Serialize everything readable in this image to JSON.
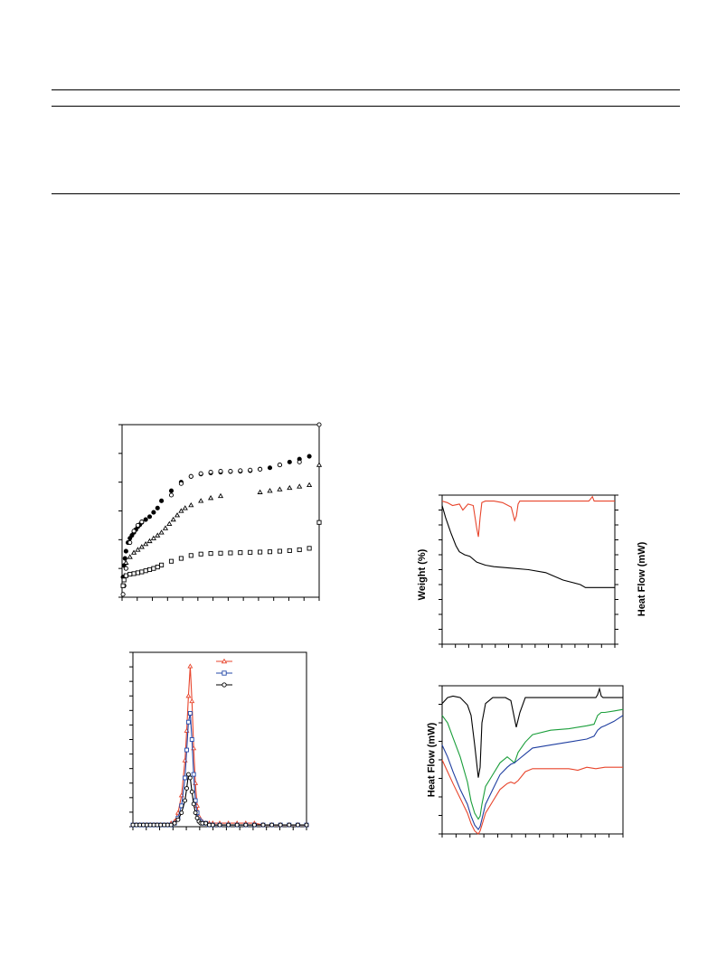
{
  "table": {
    "rules": 3
  },
  "figure_a": {
    "chart_data": {
      "type": "scatter",
      "title": "",
      "xlabel": "",
      "ylabel": "",
      "grid": false,
      "legend": "none",
      "xlim": [
        0,
        1
      ],
      "ylim": [
        0,
        600
      ],
      "series": [
        {
          "marker": "filled-circle",
          "color": "#000000",
          "x": [
            0.005,
            0.01,
            0.015,
            0.02,
            0.03,
            0.04,
            0.05,
            0.06,
            0.07,
            0.08,
            0.09,
            0.1,
            0.12,
            0.14,
            0.16,
            0.18,
            0.2,
            0.25,
            0.3,
            0.35,
            0.4,
            0.45,
            0.5,
            0.55,
            0.6,
            0.65,
            0.7,
            0.75,
            0.8,
            0.85,
            0.9,
            0.95
          ],
          "y": [
            70,
            110,
            135,
            160,
            190,
            205,
            215,
            225,
            235,
            245,
            252,
            260,
            270,
            280,
            295,
            310,
            335,
            370,
            400,
            420,
            428,
            432,
            435,
            437,
            438,
            440,
            445,
            450,
            460,
            470,
            480,
            490
          ]
        },
        {
          "marker": "open-circle",
          "color": "#000000",
          "x": [
            0.005,
            0.01,
            0.02,
            0.04,
            0.06,
            0.08,
            0.1,
            0.25,
            0.3,
            0.35,
            0.4,
            0.45,
            0.5,
            0.55,
            0.6,
            0.65,
            0.7,
            0.8,
            0.9,
            1.0
          ],
          "y": [
            10,
            40,
            100,
            190,
            230,
            250,
            262,
            355,
            395,
            420,
            430,
            435,
            438,
            438,
            440,
            442,
            445,
            460,
            470,
            600
          ]
        },
        {
          "marker": "open-triangle",
          "color": "#000000",
          "x": [
            0.02,
            0.04,
            0.06,
            0.08,
            0.1,
            0.12,
            0.14,
            0.16,
            0.18,
            0.2,
            0.22,
            0.24,
            0.26,
            0.28,
            0.3,
            0.32,
            0.35,
            0.4,
            0.45,
            0.5,
            0.7,
            0.75,
            0.8,
            0.85,
            0.9,
            0.95,
            1.0
          ],
          "y": [
            120,
            140,
            155,
            165,
            175,
            185,
            195,
            205,
            215,
            225,
            240,
            255,
            270,
            285,
            300,
            310,
            320,
            335,
            345,
            352,
            365,
            370,
            375,
            380,
            385,
            390,
            460
          ]
        },
        {
          "marker": "open-square",
          "color": "#000000",
          "x": [
            0.005,
            0.01,
            0.02,
            0.04,
            0.06,
            0.08,
            0.1,
            0.12,
            0.14,
            0.16,
            0.18,
            0.2,
            0.25,
            0.3,
            0.35,
            0.4,
            0.45,
            0.5,
            0.55,
            0.6,
            0.65,
            0.7,
            0.75,
            0.8,
            0.85,
            0.9,
            0.95,
            1.0
          ],
          "y": [
            40,
            60,
            75,
            80,
            82,
            85,
            88,
            92,
            96,
            100,
            105,
            112,
            125,
            135,
            145,
            150,
            152,
            153,
            154,
            155,
            156,
            157,
            158,
            160,
            162,
            165,
            170,
            260
          ]
        }
      ]
    }
  },
  "figure_b": {
    "chart_data": {
      "type": "line",
      "title": "",
      "xlabel": "",
      "ylabel": "",
      "grid": false,
      "legend": "top-right",
      "xlim": [
        0,
        1
      ],
      "ylim": [
        0,
        1
      ],
      "series": [
        {
          "marker": "open-triangle",
          "color": "#e8452c",
          "x": [
            0.0,
            0.02,
            0.04,
            0.06,
            0.08,
            0.1,
            0.12,
            0.14,
            0.16,
            0.18,
            0.2,
            0.22,
            0.24,
            0.26,
            0.28,
            0.3,
            0.31,
            0.32,
            0.33,
            0.34,
            0.35,
            0.36,
            0.37,
            0.38,
            0.39,
            0.4,
            0.42,
            0.44,
            0.46,
            0.5,
            0.55,
            0.6,
            0.65,
            0.7,
            0.75,
            0.8,
            0.85,
            0.9,
            0.95,
            1.0
          ],
          "y": [
            0.01,
            0.01,
            0.01,
            0.01,
            0.01,
            0.01,
            0.01,
            0.01,
            0.01,
            0.01,
            0.01,
            0.02,
            0.03,
            0.08,
            0.18,
            0.38,
            0.55,
            0.75,
            0.92,
            0.72,
            0.45,
            0.25,
            0.12,
            0.06,
            0.04,
            0.03,
            0.02,
            0.02,
            0.02,
            0.02,
            0.02,
            0.02,
            0.02,
            0.02,
            0.01,
            0.01,
            0.01,
            0.01,
            0.01,
            0.01
          ]
        },
        {
          "marker": "open-square",
          "color": "#2448a8",
          "x": [
            0.0,
            0.02,
            0.04,
            0.06,
            0.08,
            0.1,
            0.12,
            0.14,
            0.16,
            0.18,
            0.2,
            0.22,
            0.24,
            0.26,
            0.28,
            0.3,
            0.31,
            0.32,
            0.33,
            0.34,
            0.35,
            0.36,
            0.37,
            0.38,
            0.39,
            0.4,
            0.42,
            0.44,
            0.46,
            0.5,
            0.55,
            0.6,
            0.65,
            0.7,
            0.75,
            0.8,
            0.85,
            0.9,
            0.95,
            1.0
          ],
          "y": [
            0.01,
            0.01,
            0.01,
            0.01,
            0.01,
            0.01,
            0.01,
            0.01,
            0.01,
            0.01,
            0.01,
            0.01,
            0.02,
            0.05,
            0.12,
            0.28,
            0.44,
            0.6,
            0.65,
            0.5,
            0.3,
            0.15,
            0.08,
            0.04,
            0.03,
            0.02,
            0.02,
            0.01,
            0.01,
            0.01,
            0.01,
            0.01,
            0.01,
            0.01,
            0.01,
            0.01,
            0.01,
            0.01,
            0.01,
            0.01
          ]
        },
        {
          "marker": "open-circle",
          "color": "#000000",
          "x": [
            0.0,
            0.02,
            0.04,
            0.06,
            0.08,
            0.1,
            0.12,
            0.14,
            0.16,
            0.18,
            0.2,
            0.22,
            0.24,
            0.26,
            0.28,
            0.3,
            0.31,
            0.32,
            0.33,
            0.34,
            0.35,
            0.36,
            0.37,
            0.38,
            0.39,
            0.4,
            0.42,
            0.44,
            0.46,
            0.5,
            0.55,
            0.6,
            0.65,
            0.7,
            0.75,
            0.8,
            0.85,
            0.9,
            0.95,
            1.0
          ],
          "y": [
            0.01,
            0.01,
            0.01,
            0.01,
            0.01,
            0.01,
            0.01,
            0.01,
            0.01,
            0.01,
            0.01,
            0.01,
            0.02,
            0.04,
            0.08,
            0.15,
            0.22,
            0.3,
            0.28,
            0.2,
            0.13,
            0.08,
            0.05,
            0.03,
            0.02,
            0.02,
            0.02,
            0.01,
            0.01,
            0.01,
            0.01,
            0.01,
            0.01,
            0.01,
            0.01,
            0.01,
            0.01,
            0.01,
            0.01,
            0.01
          ]
        }
      ]
    }
  },
  "figure_c": {
    "y_label_left": "Weight (%)",
    "y_label_right": "Heat Flow (mW)",
    "chart_data": {
      "type": "line",
      "title": "",
      "xlabel": "",
      "grid": false,
      "legend": "none",
      "xlim": [
        0,
        1
      ],
      "ylim": [
        0,
        1
      ],
      "series": [
        {
          "color": "#e8452c",
          "x": [
            0.0,
            0.03,
            0.06,
            0.1,
            0.12,
            0.15,
            0.18,
            0.2,
            0.21,
            0.22,
            0.23,
            0.25,
            0.3,
            0.35,
            0.4,
            0.42,
            0.43,
            0.44,
            0.45,
            0.47,
            0.5,
            0.6,
            0.7,
            0.8,
            0.85,
            0.87,
            0.88,
            0.89,
            0.9,
            0.95,
            1.0
          ],
          "y": [
            0.96,
            0.95,
            0.93,
            0.94,
            0.9,
            0.94,
            0.93,
            0.78,
            0.72,
            0.85,
            0.95,
            0.96,
            0.96,
            0.95,
            0.92,
            0.83,
            0.86,
            0.94,
            0.96,
            0.96,
            0.96,
            0.96,
            0.96,
            0.96,
            0.96,
            0.99,
            0.96,
            0.96,
            0.96,
            0.96,
            0.96
          ]
        },
        {
          "color": "#000000",
          "x": [
            0.0,
            0.02,
            0.05,
            0.08,
            0.1,
            0.13,
            0.16,
            0.2,
            0.25,
            0.3,
            0.4,
            0.5,
            0.6,
            0.7,
            0.8,
            0.83,
            0.85,
            0.9,
            0.95,
            1.0
          ],
          "y": [
            0.93,
            0.85,
            0.75,
            0.66,
            0.62,
            0.6,
            0.59,
            0.55,
            0.53,
            0.52,
            0.51,
            0.5,
            0.48,
            0.43,
            0.4,
            0.38,
            0.38,
            0.38,
            0.38,
            0.38
          ]
        }
      ]
    }
  },
  "figure_d": {
    "y_label": "Heat Flow (mW)",
    "chart_data": {
      "type": "line",
      "title": "",
      "xlabel": "",
      "grid": false,
      "legend": "none",
      "xlim": [
        0,
        1
      ],
      "ylim": [
        0,
        1
      ],
      "series": [
        {
          "color": "#000000",
          "x": [
            0.0,
            0.03,
            0.06,
            0.1,
            0.14,
            0.16,
            0.18,
            0.2,
            0.21,
            0.22,
            0.24,
            0.28,
            0.35,
            0.38,
            0.4,
            0.41,
            0.43,
            0.46,
            0.5,
            0.6,
            0.7,
            0.8,
            0.85,
            0.86,
            0.87,
            0.88,
            0.89,
            0.9,
            0.95,
            1.0
          ],
          "y": [
            0.88,
            0.92,
            0.93,
            0.92,
            0.87,
            0.8,
            0.6,
            0.38,
            0.45,
            0.75,
            0.88,
            0.92,
            0.92,
            0.9,
            0.78,
            0.72,
            0.82,
            0.92,
            0.92,
            0.92,
            0.92,
            0.92,
            0.92,
            0.94,
            0.98,
            0.93,
            0.92,
            0.92,
            0.92,
            0.92
          ]
        },
        {
          "color": "#1a9e3a",
          "x": [
            0.0,
            0.03,
            0.06,
            0.1,
            0.14,
            0.16,
            0.18,
            0.2,
            0.21,
            0.22,
            0.24,
            0.28,
            0.32,
            0.36,
            0.38,
            0.4,
            0.42,
            0.46,
            0.5,
            0.6,
            0.7,
            0.8,
            0.84,
            0.86,
            0.88,
            0.9,
            0.95,
            1.0
          ],
          "y": [
            0.8,
            0.75,
            0.65,
            0.52,
            0.35,
            0.22,
            0.14,
            0.1,
            0.12,
            0.2,
            0.32,
            0.4,
            0.48,
            0.52,
            0.5,
            0.48,
            0.55,
            0.62,
            0.67,
            0.7,
            0.71,
            0.73,
            0.74,
            0.8,
            0.82,
            0.82,
            0.83,
            0.84
          ]
        },
        {
          "color": "#1f3ea0",
          "x": [
            0.0,
            0.03,
            0.06,
            0.1,
            0.14,
            0.16,
            0.18,
            0.2,
            0.21,
            0.22,
            0.24,
            0.28,
            0.32,
            0.36,
            0.38,
            0.4,
            0.42,
            0.46,
            0.5,
            0.6,
            0.7,
            0.8,
            0.84,
            0.86,
            0.88,
            0.9,
            0.95,
            1.0
          ],
          "y": [
            0.6,
            0.52,
            0.42,
            0.3,
            0.2,
            0.12,
            0.06,
            0.03,
            0.05,
            0.1,
            0.2,
            0.3,
            0.4,
            0.45,
            0.47,
            0.48,
            0.5,
            0.54,
            0.58,
            0.6,
            0.62,
            0.64,
            0.66,
            0.7,
            0.72,
            0.73,
            0.76,
            0.8
          ]
        },
        {
          "color": "#e8452c",
          "x": [
            0.0,
            0.03,
            0.06,
            0.1,
            0.14,
            0.16,
            0.18,
            0.2,
            0.21,
            0.22,
            0.24,
            0.28,
            0.32,
            0.36,
            0.38,
            0.4,
            0.42,
            0.46,
            0.5,
            0.6,
            0.7,
            0.75,
            0.8,
            0.85,
            0.9,
            0.95,
            1.0
          ],
          "y": [
            0.5,
            0.42,
            0.34,
            0.24,
            0.14,
            0.07,
            0.02,
            0.0,
            0.02,
            0.06,
            0.14,
            0.22,
            0.3,
            0.34,
            0.35,
            0.34,
            0.36,
            0.42,
            0.44,
            0.44,
            0.44,
            0.43,
            0.45,
            0.44,
            0.45,
            0.45,
            0.45
          ]
        }
      ]
    }
  }
}
